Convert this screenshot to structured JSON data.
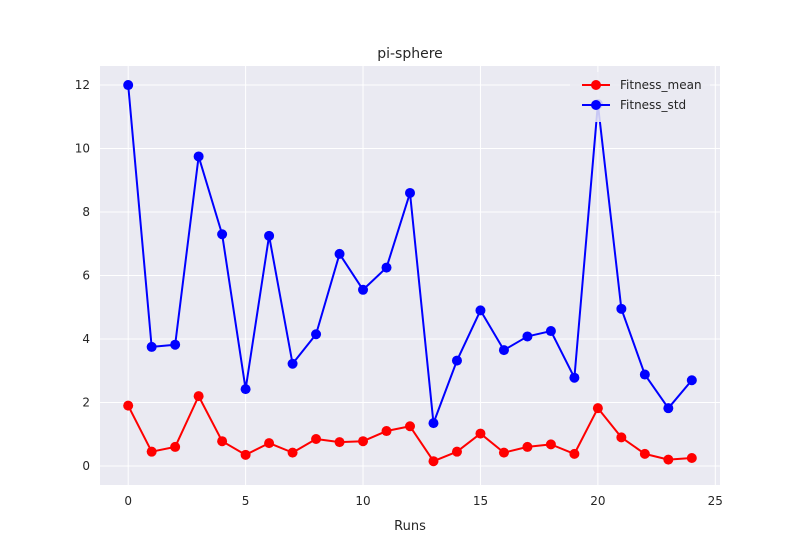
{
  "chart_data": {
    "type": "line",
    "title": "pi-sphere",
    "xlabel": "Runs",
    "ylabel": "",
    "xlim": [
      -1.2,
      25.2
    ],
    "ylim": [
      -0.6,
      12.6
    ],
    "xticks": [
      0,
      5,
      10,
      15,
      20,
      25
    ],
    "yticks": [
      0,
      2,
      4,
      6,
      8,
      10,
      12
    ],
    "grid": true,
    "legend_position": "top-right",
    "x": [
      0,
      1,
      2,
      3,
      4,
      5,
      6,
      7,
      8,
      9,
      10,
      11,
      12,
      13,
      14,
      15,
      16,
      17,
      18,
      19,
      20,
      21,
      22,
      23,
      24
    ],
    "series": [
      {
        "name": "Fitness_mean",
        "color": "#ff0000",
        "marker": "circle",
        "values": [
          1.9,
          0.45,
          0.6,
          2.2,
          0.78,
          0.35,
          0.72,
          0.42,
          0.85,
          0.75,
          0.78,
          1.1,
          1.25,
          0.15,
          0.45,
          1.02,
          0.42,
          0.6,
          0.68,
          0.38,
          1.82,
          0.9,
          0.38,
          0.2,
          0.25
        ]
      },
      {
        "name": "Fitness_std",
        "color": "#0000ff",
        "marker": "circle",
        "values": [
          12.0,
          3.75,
          3.82,
          9.75,
          7.3,
          2.42,
          7.25,
          3.22,
          4.15,
          6.68,
          5.55,
          6.25,
          8.6,
          1.35,
          3.32,
          4.9,
          3.65,
          4.08,
          4.25,
          2.78,
          11.4,
          4.95,
          2.88,
          1.82,
          2.7
        ]
      }
    ]
  }
}
